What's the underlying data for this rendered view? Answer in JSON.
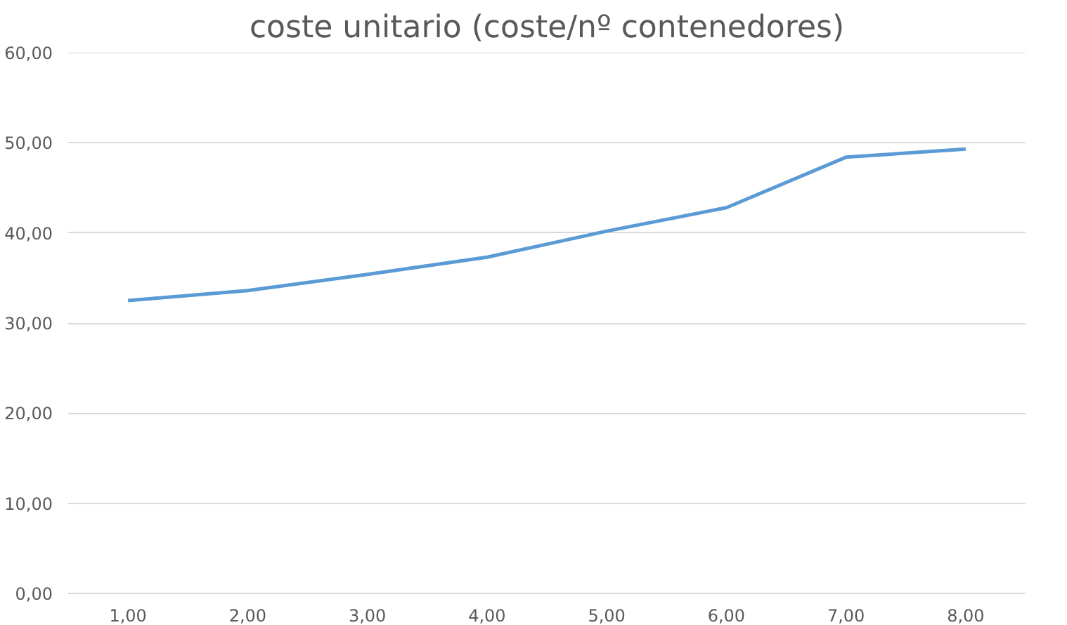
{
  "chart_data": {
    "type": "line",
    "title": "coste unitario (coste/nº contenedores)",
    "categories": [
      "1,00",
      "2,00",
      "3,00",
      "4,00",
      "5,00",
      "6,00",
      "7,00",
      "8,00"
    ],
    "series": [
      {
        "color": "#5b9bd5",
        "values": [
          32.5,
          33.6,
          35.4,
          37.3,
          40.2,
          42.8,
          48.4,
          49.3
        ]
      }
    ],
    "ylim": [
      0,
      60
    ],
    "yticks": [
      {
        "value": 0,
        "label": "0,00"
      },
      {
        "value": 10,
        "label": "10,00"
      },
      {
        "value": 20,
        "label": "20,00"
      },
      {
        "value": 30,
        "label": "30,00"
      },
      {
        "value": 40,
        "label": "40,00"
      },
      {
        "value": 50,
        "label": "50,00"
      },
      {
        "value": 60,
        "label": "60,00"
      }
    ],
    "grid": "y",
    "marker": "none",
    "line_style": "solid"
  }
}
